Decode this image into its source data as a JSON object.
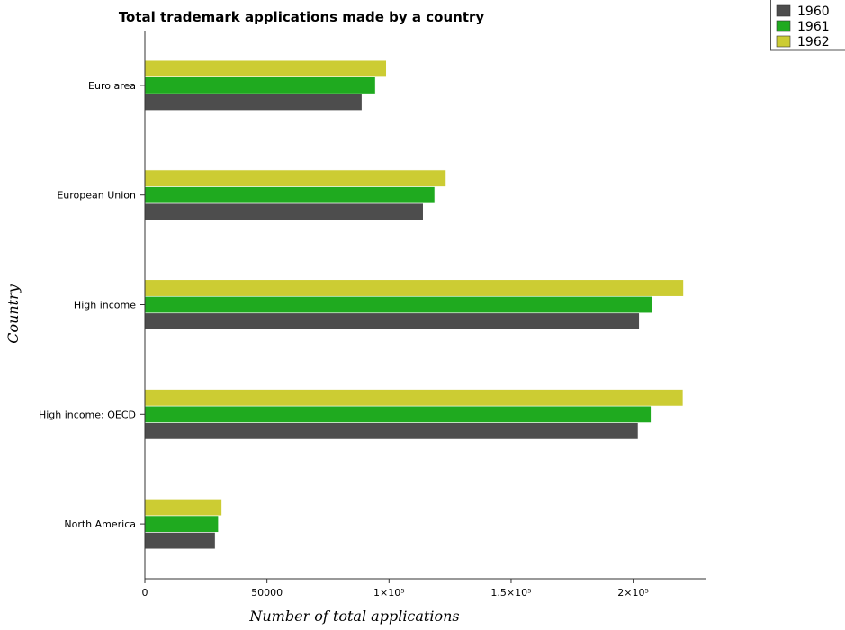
{
  "chart_data": {
    "type": "bar",
    "orientation": "horizontal",
    "title": "Total trademark applications made by a country",
    "xlabel": "Number of total applications",
    "ylabel": "Country",
    "categories": [
      "Euro area",
      "European Union",
      "High income",
      "High income: OECD",
      "North America"
    ],
    "series": [
      {
        "name": "1960",
        "color": "#4d4d4d",
        "values": [
          88900,
          114000,
          202500,
          202000,
          28800
        ]
      },
      {
        "name": "1961",
        "color": "#1faa1f",
        "values": [
          94400,
          118700,
          207700,
          207300,
          30100
        ]
      },
      {
        "name": "1962",
        "color": "#cccc33",
        "values": [
          98900,
          123300,
          220600,
          220400,
          31500
        ]
      }
    ],
    "xlim": [
      0,
      230000
    ],
    "xticks": [
      0,
      50000,
      100000,
      150000,
      200000
    ],
    "xtick_labels": [
      "0",
      "50000",
      "1×10⁵",
      "1.5×10⁵",
      "2×10⁵"
    ],
    "grid": false,
    "legend_position": "top-right"
  }
}
